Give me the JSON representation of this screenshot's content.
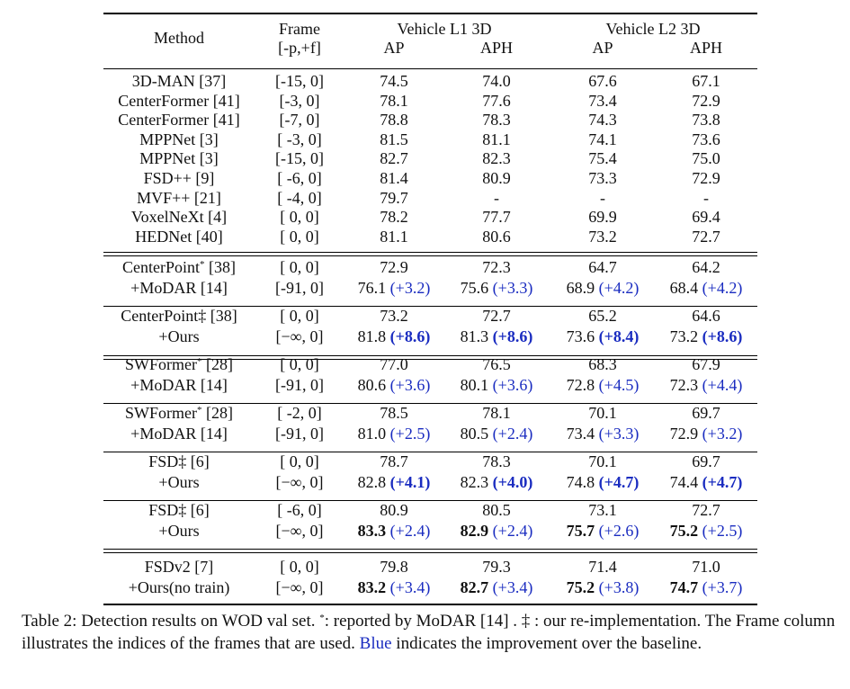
{
  "header": {
    "method": "Method",
    "frame_line1": "Frame",
    "frame_line2": "[-p,+f]",
    "group_l1": "Vehicle L1 3D",
    "group_l2": "Vehicle L2 3D",
    "ap": "AP",
    "aph": "APH"
  },
  "rows_block1": [
    {
      "method": "3D-MAN [37]",
      "frame": "[-15, 0]",
      "l1ap": "74.5",
      "l1aph": "74.0",
      "l2ap": "67.6",
      "l2aph": "67.1"
    },
    {
      "method": "CenterFormer [41]",
      "frame": "[-3, 0]",
      "l1ap": "78.1",
      "l1aph": "77.6",
      "l2ap": "73.4",
      "l2aph": "72.9"
    },
    {
      "method": "CenterFormer [41]",
      "frame": "[-7, 0]",
      "l1ap": "78.8",
      "l1aph": "78.3",
      "l2ap": "74.3",
      "l2aph": "73.8"
    },
    {
      "method": "MPPNet [3]",
      "frame": "[ -3, 0]",
      "l1ap": "81.5",
      "l1aph": "81.1",
      "l2ap": "74.1",
      "l2aph": "73.6"
    },
    {
      "method": "MPPNet [3]",
      "frame": "[-15, 0]",
      "l1ap": "82.7",
      "l1aph": "82.3",
      "l2ap": "75.4",
      "l2aph": "75.0"
    },
    {
      "method": "FSD++ [9]",
      "frame": "[ -6, 0]",
      "l1ap": "81.4",
      "l1aph": "80.9",
      "l2ap": "73.3",
      "l2aph": "72.9"
    },
    {
      "method": "MVF++ [21]",
      "frame": "[ -4, 0]",
      "l1ap": "79.7",
      "l1aph": "-",
      "l2ap": "-",
      "l2aph": "-"
    },
    {
      "method": "VoxelNeXt [4]",
      "frame": "[ 0, 0]",
      "l1ap": "78.2",
      "l1aph": "77.7",
      "l2ap": "69.9",
      "l2aph": "69.4"
    },
    {
      "method": "HEDNet [40]",
      "frame": "[ 0, 0]",
      "l1ap": "81.1",
      "l1aph": "80.6",
      "l2ap": "73.2",
      "l2aph": "72.7"
    }
  ],
  "pairs": [
    {
      "base": {
        "name": "CenterPoint",
        "mark": "*",
        "ref": "[38]",
        "frame": "[ 0, 0]",
        "l1ap": "72.9",
        "l1aph": "72.3",
        "l2ap": "64.7",
        "l2aph": "64.2"
      },
      "imp": {
        "name": "+MoDAR [14]",
        "frame": "[-91, 0]",
        "l1ap": "76.1",
        "l1ap_gain": "(+3.2)",
        "l1aph": "75.6",
        "l1aph_gain": "(+3.3)",
        "l2ap": "68.9",
        "l2ap_gain": "(+4.2)",
        "l2aph": "68.4",
        "l2aph_gain": "(+4.2)"
      }
    },
    {
      "base": {
        "name": "CenterPoint‡",
        "mark": "",
        "ref": " [38]",
        "frame": "[ 0, 0]",
        "l1ap": "73.2",
        "l1aph": "72.7",
        "l2ap": "65.2",
        "l2aph": "64.6"
      },
      "imp": {
        "name": "+Ours",
        "frame": "[−∞, 0]",
        "l1ap": "81.8",
        "l1ap_gain": "(+8.6)",
        "l1aph": "81.3",
        "l1aph_gain": "(+8.6)",
        "l2ap": "73.6",
        "l2ap_gain": "(+8.4)",
        "l2aph": "73.2",
        "l2aph_gain": "(+8.6)"
      }
    },
    {
      "base": {
        "name": "SWFormer",
        "mark": "*",
        "ref": "[28]",
        "frame": "[ 0, 0]",
        "l1ap": "77.0",
        "l1aph": "76.5",
        "l2ap": "68.3",
        "l2aph": "67.9"
      },
      "imp": {
        "name": "+MoDAR [14]",
        "frame": "[-91, 0]",
        "l1ap": "80.6",
        "l1ap_gain": "(+3.6)",
        "l1aph": "80.1",
        "l1aph_gain": "(+3.6)",
        "l2ap": "72.8",
        "l2ap_gain": "(+4.5)",
        "l2aph": "72.3",
        "l2aph_gain": "(+4.4)"
      }
    },
    {
      "base": {
        "name": "SWFormer",
        "mark": "*",
        "ref": "[28]",
        "frame": "[ -2, 0]",
        "l1ap": "78.5",
        "l1aph": "78.1",
        "l2ap": "70.1",
        "l2aph": "69.7"
      },
      "imp": {
        "name": "+MoDAR [14]",
        "frame": "[-91, 0]",
        "l1ap": "81.0",
        "l1ap_gain": "(+2.5)",
        "l1aph": "80.5",
        "l1aph_gain": "(+2.4)",
        "l2ap": "73.4",
        "l2ap_gain": "(+3.3)",
        "l2aph": "72.9",
        "l2aph_gain": "(+3.2)"
      }
    },
    {
      "base": {
        "name": "FSD‡",
        "mark": "",
        "ref": " [6]",
        "frame": "[ 0, 0]",
        "l1ap": "78.7",
        "l1aph": "78.3",
        "l2ap": "70.1",
        "l2aph": "69.7"
      },
      "imp": {
        "name": "+Ours",
        "frame": "[−∞, 0]",
        "l1ap": "82.8",
        "l1ap_gain": "(+4.1)",
        "l1aph": "82.3",
        "l1aph_gain": "(+4.0)",
        "l2ap": "74.8",
        "l2ap_gain": "(+4.7)",
        "l2aph": "74.4",
        "l2aph_gain": "(+4.7)"
      }
    },
    {
      "base": {
        "name": "FSD‡",
        "mark": "",
        "ref": " [6]",
        "frame": "[ -6, 0]",
        "l1ap": "80.9",
        "l1aph": "80.5",
        "l2ap": "73.1",
        "l2aph": "72.7"
      },
      "imp": {
        "name": "+Ours",
        "frame": "[−∞, 0]",
        "l1ap": "83.3",
        "l1ap_gain": "(+2.4)",
        "l1aph": "82.9",
        "l1aph_gain": "(+2.4)",
        "l2ap": "75.7",
        "l2ap_gain": "(+2.6)",
        "l2aph": "75.2",
        "l2aph_gain": "(+2.5)"
      }
    },
    {
      "base": {
        "name": "FSDv2 [7]",
        "mark": "",
        "ref": "",
        "frame": "[ 0, 0]",
        "l1ap": "79.8",
        "l1aph": "79.3",
        "l2ap": "71.4",
        "l2aph": "71.0"
      },
      "imp": {
        "name": "+Ours(no train)",
        "frame": "[−∞, 0]",
        "l1ap": "83.2",
        "l1ap_gain": "(+3.4)",
        "l1aph": "82.7",
        "l1aph_gain": "(+3.4)",
        "l2ap": "75.2",
        "l2ap_gain": "(+3.8)",
        "l2aph": "74.7",
        "l2aph_gain": "(+3.7)"
      }
    }
  ],
  "caption": {
    "part1": "Table 2: Detection results on WOD val set. ",
    "star": "*",
    "part2": ": reported by MoDAR [14] . ‡ : our re-implementation. The Frame column illustrates the indices of the frames that are used. ",
    "blue_word": "Blue",
    "part3": " indicates the improvement over the baseline."
  },
  "colors": {
    "gain": "#1a2cc0",
    "text": "#111111"
  }
}
